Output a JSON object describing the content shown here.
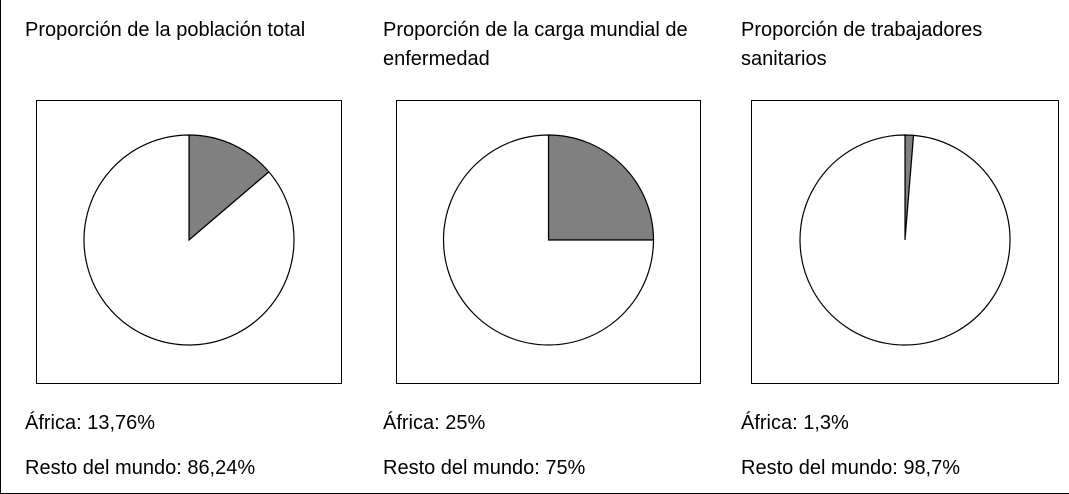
{
  "chart_data": [
    {
      "type": "pie",
      "title": "Proporción de la población total",
      "values": [
        13.76,
        86.24
      ],
      "value_labels": [
        "África: 13,76%",
        "Resto del mundo: 86,24%"
      ],
      "colors": [
        "#808080",
        "#ffffff"
      ]
    },
    {
      "type": "pie",
      "title": "Proporción de la carga mundial de enfermedad",
      "values": [
        25,
        75
      ],
      "value_labels": [
        "África: 25%",
        "Resto del mundo: 75%"
      ],
      "colors": [
        "#808080",
        "#ffffff"
      ]
    },
    {
      "type": "pie",
      "title": "Proporción de trabajadores sanitarios",
      "values": [
        1.3,
        98.7
      ],
      "value_labels": [
        "África: 1,3%",
        "Resto del mundo: 98,7%"
      ],
      "colors": [
        "#808080",
        "#ffffff"
      ]
    }
  ]
}
